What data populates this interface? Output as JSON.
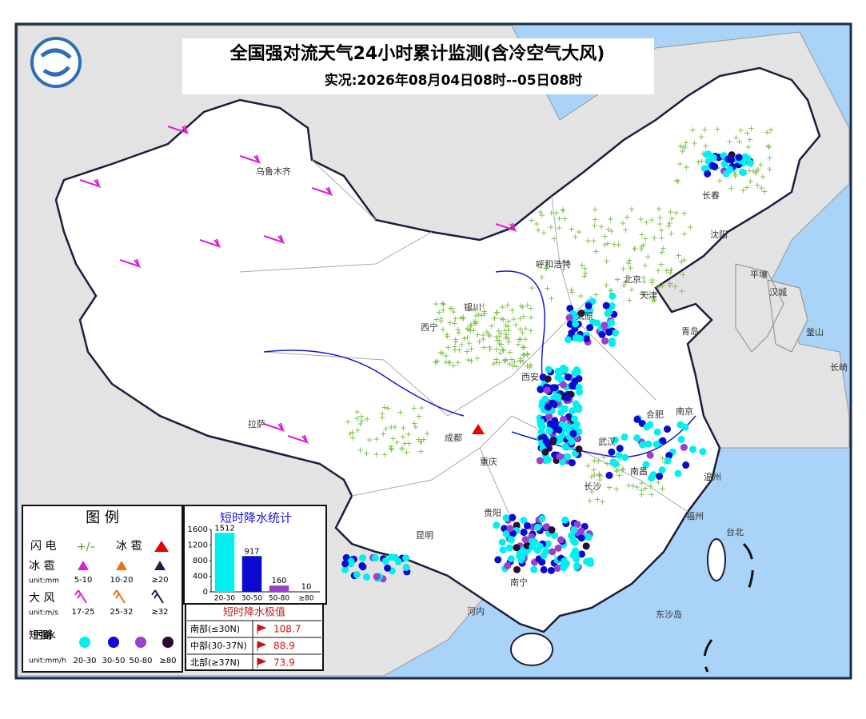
{
  "header": {
    "title": "全国强对流天气24小时累计监测(含冷空气大风)",
    "subtitle": "实况:2026年08月04日08时--05日08时"
  },
  "map_labels": [
    "乌鲁木齐",
    "西宁",
    "拉萨",
    "成都",
    "重庆",
    "贵阳",
    "昆明",
    "南宁",
    "西安",
    "太原",
    "北京",
    "天津",
    "呼和浩特",
    "沈阳",
    "长春",
    "青岛",
    "合肥",
    "南京",
    "武汉",
    "长沙",
    "南昌",
    "福州",
    "温州",
    "台北",
    "银川",
    "河内",
    "东沙岛",
    "平壤",
    "汉城",
    "釜山",
    "长崎"
  ],
  "legend": {
    "title": "图 例",
    "lightning": "闪 电",
    "hail_title": "冰 雹",
    "hail": {
      "label": "冰 雹",
      "unit": "unit:mm",
      "classes": [
        "5-10",
        "10-20",
        "≥20"
      ]
    },
    "wind": {
      "label": "大 风",
      "unit": "unit:m/s",
      "classes": [
        "17-25",
        "25-32",
        "≥32"
      ]
    },
    "rain": {
      "label": "短时强降 水",
      "unit": "unit:mm/h",
      "classes": [
        "20-30",
        "30-50",
        "50-80",
        "≥80"
      ]
    }
  },
  "chart_data": {
    "type": "bar",
    "title": "短时降水统计",
    "categories": [
      "20-30",
      "30-50",
      "50-80",
      "≥80"
    ],
    "values": [
      1512,
      917,
      160,
      10
    ],
    "colors": [
      "#00f0f0",
      "#0a0ad0",
      "#9b3fcf",
      "#2b0a30"
    ],
    "ylim": [
      0,
      1600
    ],
    "yticks": [
      0,
      400,
      800,
      1200,
      1600
    ]
  },
  "extremes": {
    "title": "短时降水极值",
    "rows": [
      [
        "南部(≤30N)",
        108.7
      ],
      [
        "中部(30-37N)",
        88.9
      ],
      [
        "北部(≥37N)",
        73.9
      ]
    ]
  }
}
